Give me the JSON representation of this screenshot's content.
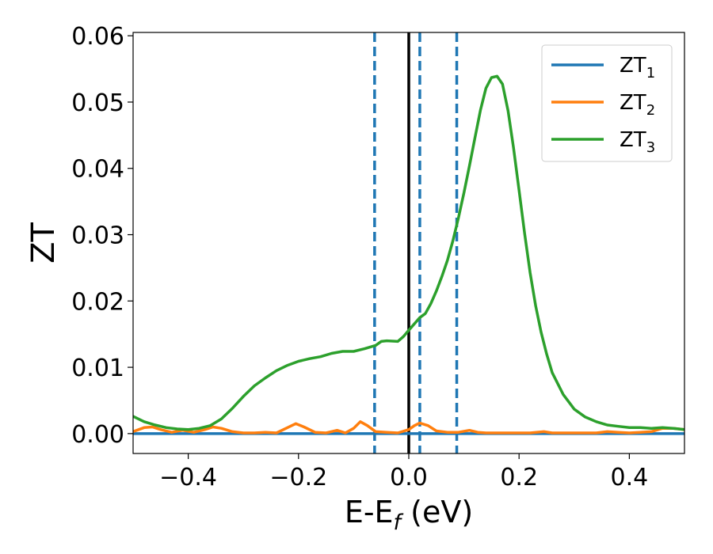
{
  "chart_data": {
    "type": "line",
    "title": "",
    "xlabel": "E-E",
    "xlabel_sub": "f",
    "xlabel_unit": " (eV)",
    "ylabel": "ZT",
    "xlim": [
      -0.5,
      0.5
    ],
    "ylim": [
      -0.003,
      0.0605
    ],
    "xticks": [
      -0.4,
      -0.2,
      0.0,
      0.2,
      0.4
    ],
    "xtick_labels": [
      "−0.4",
      "−0.2",
      "0.0",
      "0.2",
      "0.4"
    ],
    "yticks": [
      0.0,
      0.01,
      0.02,
      0.03,
      0.04,
      0.05,
      0.06
    ],
    "ytick_labels": [
      "0.00",
      "0.01",
      "0.02",
      "0.03",
      "0.04",
      "0.05",
      "0.06"
    ],
    "grid": false,
    "legend_position": "top-right",
    "vertical_lines": [
      {
        "x": -0.062,
        "style": "dashed",
        "color": "#1f77b4"
      },
      {
        "x": 0.0,
        "style": "solid",
        "color": "#000000"
      },
      {
        "x": 0.02,
        "style": "dashed",
        "color": "#1f77b4"
      },
      {
        "x": 0.087,
        "style": "dashed",
        "color": "#1f77b4"
      }
    ],
    "series": [
      {
        "name": "ZT",
        "name_sub": "1",
        "color": "#1f77b4",
        "x": [
          -0.5,
          0.5
        ],
        "y": [
          0.0,
          0.0
        ]
      },
      {
        "name": "ZT",
        "name_sub": "2",
        "color": "#ff7f0e",
        "x": [
          -0.5,
          -0.48,
          -0.465,
          -0.45,
          -0.43,
          -0.41,
          -0.39,
          -0.37,
          -0.355,
          -0.34,
          -0.32,
          -0.3,
          -0.28,
          -0.26,
          -0.24,
          -0.22,
          -0.205,
          -0.19,
          -0.17,
          -0.15,
          -0.13,
          -0.115,
          -0.1,
          -0.088,
          -0.075,
          -0.06,
          -0.04,
          -0.02,
          0.0,
          0.01,
          0.02,
          0.035,
          0.05,
          0.07,
          0.09,
          0.11,
          0.125,
          0.14,
          0.16,
          0.18,
          0.2,
          0.22,
          0.245,
          0.26,
          0.28,
          0.3,
          0.32,
          0.34,
          0.36,
          0.38,
          0.4,
          0.42,
          0.44,
          0.46,
          0.48,
          0.5
        ],
        "y": [
          0.0003,
          0.0009,
          0.001,
          0.0006,
          0.0002,
          0.0005,
          0.0002,
          0.0006,
          0.001,
          0.0008,
          0.0003,
          0.0001,
          0.0001,
          0.0002,
          0.0001,
          0.0009,
          0.0015,
          0.001,
          0.0002,
          0.0001,
          0.0005,
          0.0001,
          0.0008,
          0.0018,
          0.0012,
          0.0003,
          0.0002,
          0.0001,
          0.0006,
          0.0012,
          0.0016,
          0.0012,
          0.0004,
          0.0002,
          0.0002,
          0.0005,
          0.0002,
          0.0001,
          0.0001,
          0.0001,
          0.0001,
          0.0001,
          0.0003,
          0.0001,
          0.0001,
          0.0001,
          0.0001,
          0.0001,
          0.0003,
          0.0002,
          0.0001,
          0.0002,
          0.0003,
          0.0008,
          0.0008,
          0.0006
        ]
      },
      {
        "name": "ZT",
        "name_sub": "3",
        "color": "#2ca02c",
        "x": [
          -0.5,
          -0.48,
          -0.46,
          -0.44,
          -0.42,
          -0.4,
          -0.38,
          -0.36,
          -0.34,
          -0.32,
          -0.3,
          -0.28,
          -0.26,
          -0.24,
          -0.22,
          -0.2,
          -0.18,
          -0.16,
          -0.14,
          -0.12,
          -0.1,
          -0.08,
          -0.06,
          -0.05,
          -0.04,
          -0.02,
          -0.01,
          0.0,
          0.02,
          0.03,
          0.04,
          0.05,
          0.06,
          0.07,
          0.08,
          0.09,
          0.1,
          0.11,
          0.12,
          0.13,
          0.14,
          0.15,
          0.16,
          0.17,
          0.18,
          0.19,
          0.2,
          0.21,
          0.22,
          0.23,
          0.24,
          0.25,
          0.26,
          0.28,
          0.3,
          0.32,
          0.34,
          0.36,
          0.38,
          0.4,
          0.42,
          0.44,
          0.46,
          0.48,
          0.5
        ],
        "y": [
          0.0026,
          0.0018,
          0.0013,
          0.0009,
          0.0007,
          0.0006,
          0.0008,
          0.0012,
          0.0022,
          0.0038,
          0.0056,
          0.0072,
          0.0084,
          0.0095,
          0.0103,
          0.0109,
          0.0113,
          0.0116,
          0.0121,
          0.0124,
          0.0124,
          0.0128,
          0.0133,
          0.0139,
          0.014,
          0.0139,
          0.0146,
          0.0156,
          0.0175,
          0.0181,
          0.0196,
          0.0215,
          0.0237,
          0.0261,
          0.0291,
          0.0325,
          0.0363,
          0.0404,
          0.0446,
          0.0488,
          0.0521,
          0.0537,
          0.0539,
          0.0527,
          0.0487,
          0.0431,
          0.0367,
          0.0302,
          0.0243,
          0.0193,
          0.0153,
          0.012,
          0.0092,
          0.0059,
          0.0037,
          0.0025,
          0.0018,
          0.0013,
          0.0011,
          0.0009,
          0.0009,
          0.0008,
          0.0009,
          0.0008,
          0.0006
        ]
      }
    ]
  }
}
